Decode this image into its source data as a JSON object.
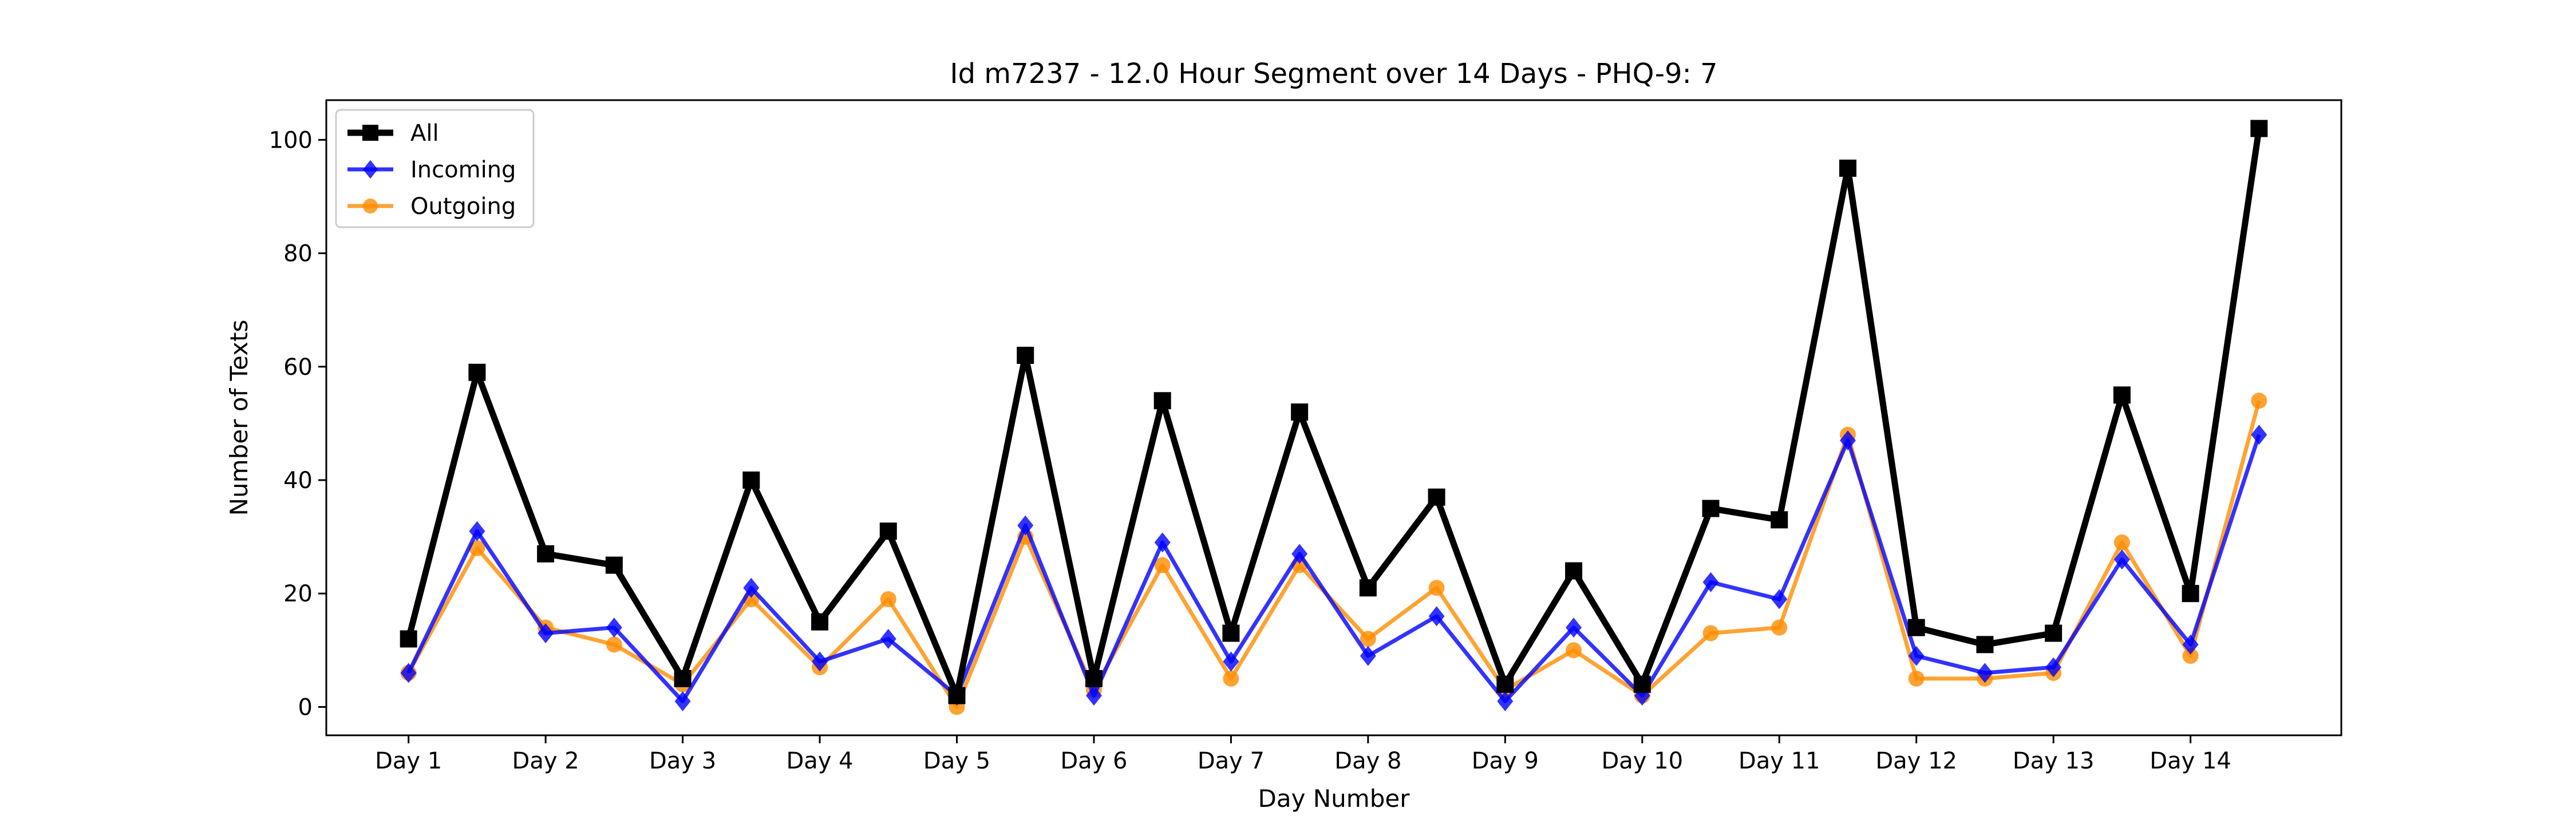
{
  "chart_data": {
    "type": "line",
    "title": "Id m7237 - 12.0 Hour Segment over 14 Days - PHQ-9: 7",
    "xlabel": "Day Number",
    "ylabel": "Number of Texts",
    "x_tick_labels": [
      "Day 1",
      "Day 2",
      "Day 3",
      "Day 4",
      "Day 5",
      "Day 6",
      "Day 7",
      "Day 8",
      "Day 9",
      "Day 10",
      "Day 11",
      "Day 12",
      "Day 13",
      "Day 14"
    ],
    "x": [
      1,
      1.5,
      2,
      2.5,
      3,
      3.5,
      4,
      4.5,
      5,
      5.5,
      6,
      6.5,
      7,
      7.5,
      8,
      8.5,
      9,
      9.5,
      10,
      10.5,
      11,
      11.5,
      12,
      12.5,
      13,
      13.5,
      14,
      14.5
    ],
    "xlim": [
      0.4,
      15.1
    ],
    "ylim": [
      -5,
      107
    ],
    "y_ticks": [
      0,
      20,
      40,
      60,
      80,
      100
    ],
    "grid": false,
    "legend_position": "upper-left",
    "series": [
      {
        "name": "All",
        "color": "#000000",
        "marker": "square",
        "values": [
          12,
          59,
          27,
          25,
          5,
          40,
          15,
          31,
          2,
          62,
          5,
          54,
          13,
          52,
          21,
          37,
          4,
          24,
          4,
          35,
          33,
          95,
          14,
          11,
          13,
          55,
          20,
          102
        ]
      },
      {
        "name": "Incoming",
        "color": "#0000ff",
        "marker": "diamond",
        "values": [
          6,
          31,
          13,
          14,
          1,
          21,
          8,
          12,
          2,
          32,
          2,
          29,
          8,
          27,
          9,
          16,
          1,
          14,
          2,
          22,
          19,
          47,
          9,
          6,
          7,
          26,
          11,
          48
        ]
      },
      {
        "name": "Outgoing",
        "color": "#ff8c00",
        "marker": "circle",
        "values": [
          6,
          28,
          14,
          11,
          4,
          19,
          7,
          19,
          0,
          30,
          3,
          25,
          5,
          25,
          12,
          21,
          3,
          10,
          2,
          13,
          14,
          48,
          5,
          5,
          6,
          29,
          9,
          54
        ]
      }
    ]
  }
}
